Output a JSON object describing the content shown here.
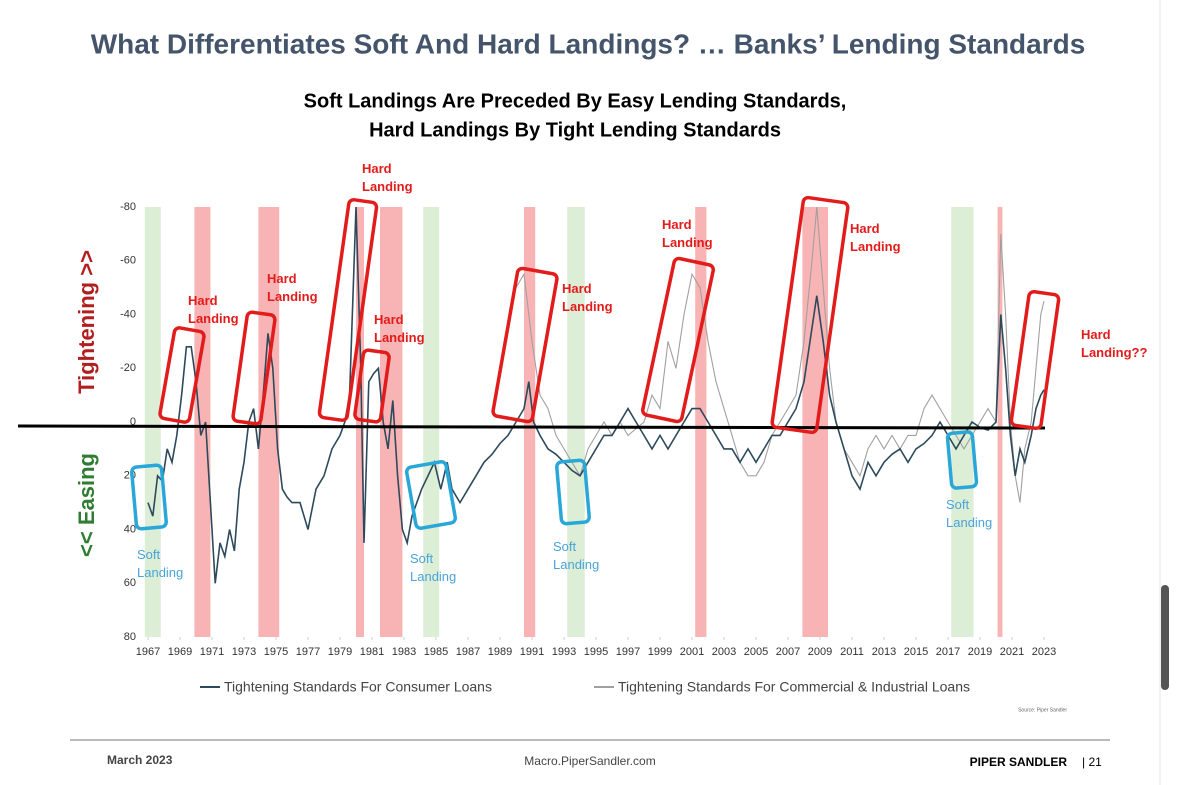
{
  "slide": {
    "title": "What Differentiates Soft And Hard Landings? … Banks’ Lending Standards",
    "footer_date": "March 2023",
    "footer_site": "Macro.PiperSandler.com",
    "footer_brand": "PIPER SANDLER",
    "footer_page": "| 21"
  },
  "chart_data": {
    "type": "line",
    "title_lines": [
      "Soft Landings Are Preceded By Easy Lending Standards,",
      "Hard Landings By Tight Lending Standards"
    ],
    "y_label_up": "Tightening >>",
    "y_label_down": "<< Easing",
    "source": "Source: Piper Sandler",
    "invert_y": true,
    "xlim": [
      1966.5,
      2024
    ],
    "xticks": [
      1967,
      1969,
      1971,
      1973,
      1975,
      1977,
      1979,
      1981,
      1983,
      1985,
      1987,
      1989,
      1991,
      1993,
      1995,
      1997,
      1999,
      2001,
      2003,
      2005,
      2007,
      2009,
      2011,
      2013,
      2015,
      2017,
      2019,
      2021,
      2023
    ],
    "ylim": [
      -80,
      80
    ],
    "yticks": [
      -80,
      -60,
      -40,
      -20,
      0,
      20,
      40,
      60,
      80
    ],
    "recessions": [
      [
        1969.9,
        1970.9
      ],
      [
        1973.9,
        1975.2
      ],
      [
        1980,
        1980.5
      ],
      [
        1981.5,
        1982.9
      ],
      [
        1990.5,
        1991.2
      ],
      [
        2001.2,
        2001.9
      ],
      [
        2007.9,
        2009.5
      ],
      [
        2020.1,
        2020.4
      ]
    ],
    "recession_color": "#f8b4b4",
    "soft_periods": [
      [
        1966.8,
        1967.8
      ],
      [
        1984.2,
        1985.2
      ],
      [
        1993.2,
        1994.3
      ],
      [
        2017.2,
        2018.6
      ]
    ],
    "soft_color": "#dcefd6",
    "annotations": [
      "Hard Landing",
      "Hard Landing",
      "Hard Landing",
      "Hard Landing",
      "Hard Landing",
      "Hard Landing",
      "Hard Landing",
      "Hard Landing??",
      "Soft Landing",
      "Soft Landing",
      "Soft Landing",
      "Soft Landing"
    ],
    "series": [
      {
        "name": "Tightening Standards For Consumer Loans",
        "color": "#2d4a5c",
        "x": [
          1967,
          1967.3,
          1967.6,
          1967.9,
          1968.2,
          1968.5,
          1968.8,
          1969.1,
          1969.4,
          1969.7,
          1970,
          1970.3,
          1970.6,
          1970.9,
          1971.2,
          1971.5,
          1971.8,
          1972.1,
          1972.4,
          1972.7,
          1973,
          1973.3,
          1973.6,
          1973.9,
          1974.2,
          1974.5,
          1974.8,
          1975.1,
          1975.4,
          1975.7,
          1976,
          1976.5,
          1977,
          1977.5,
          1978,
          1978.5,
          1979,
          1979.3,
          1979.6,
          1980,
          1980.3,
          1980.5,
          1980.8,
          1981.1,
          1981.4,
          1981.7,
          1982,
          1982.3,
          1982.6,
          1982.9,
          1983.2,
          1983.5,
          1983.8,
          1984.1,
          1984.5,
          1984.9,
          1985.3,
          1985.7,
          1986,
          1986.5,
          1987,
          1987.5,
          1988,
          1988.5,
          1989,
          1989.5,
          1990,
          1990.5,
          1990.8,
          1991.1,
          1991.5,
          1992,
          1992.5,
          1993,
          1993.5,
          1994,
          1994.5,
          1995,
          1995.5,
          1996,
          1996.5,
          1997,
          1997.5,
          1998,
          1998.5,
          1999,
          1999.5,
          2000,
          2000.5,
          2001,
          2001.5,
          2002,
          2002.5,
          2003,
          2003.5,
          2004,
          2004.5,
          2005,
          2005.5,
          2006,
          2006.5,
          2007,
          2007.5,
          2008,
          2008.5,
          2008.8,
          2009.2,
          2009.6,
          2010,
          2010.5,
          2011,
          2011.5,
          2012,
          2012.5,
          2013,
          2013.5,
          2014,
          2014.5,
          2015,
          2015.5,
          2016,
          2016.5,
          2017,
          2017.5,
          2018,
          2018.5,
          2019,
          2019.5,
          2020,
          2020.3,
          2020.6,
          2020.9,
          2021.2,
          2021.5,
          2021.8,
          2022.2,
          2022.5,
          2022.8,
          2023
        ],
        "values": [
          30,
          35,
          20,
          22,
          10,
          15,
          5,
          -10,
          -28,
          -28,
          -15,
          5,
          0,
          30,
          60,
          45,
          50,
          40,
          48,
          25,
          15,
          0,
          -5,
          10,
          -10,
          -33,
          -20,
          10,
          25,
          28,
          30,
          30,
          40,
          25,
          20,
          10,
          5,
          0,
          -10,
          -80,
          -20,
          45,
          -15,
          -18,
          -20,
          0,
          10,
          -8,
          20,
          40,
          45,
          35,
          30,
          25,
          20,
          15,
          25,
          15,
          25,
          30,
          25,
          20,
          15,
          12,
          8,
          5,
          0,
          -5,
          -15,
          0,
          5,
          10,
          12,
          15,
          18,
          20,
          15,
          10,
          5,
          5,
          0,
          -5,
          0,
          5,
          10,
          5,
          10,
          5,
          0,
          -5,
          -5,
          0,
          5,
          10,
          10,
          15,
          10,
          15,
          10,
          5,
          5,
          0,
          -5,
          -15,
          -35,
          -47,
          -30,
          -10,
          0,
          10,
          20,
          25,
          15,
          20,
          15,
          12,
          10,
          15,
          10,
          8,
          5,
          0,
          5,
          10,
          5,
          0,
          2,
          3,
          0,
          -40,
          -20,
          5,
          20,
          10,
          15,
          5,
          -5,
          -10,
          -12
        ]
      },
      {
        "name": "Tightening Standards For Commercial & Industrial Loans",
        "color": "#a0a0a0",
        "x": [
          1990,
          1990.5,
          1991,
          1991.5,
          1992,
          1992.5,
          1993,
          1993.5,
          1994,
          1994.5,
          1995,
          1995.5,
          1996,
          1996.5,
          1997,
          1998,
          1998.5,
          1999,
          1999.5,
          2000,
          2000.5,
          2001,
          2001.5,
          2002,
          2002.5,
          2003,
          2003.5,
          2004,
          2004.5,
          2005,
          2005.5,
          2006,
          2006.5,
          2007,
          2007.5,
          2008,
          2008.5,
          2008.8,
          2009.2,
          2009.6,
          2010,
          2010.5,
          2011,
          2011.5,
          2012,
          2012.5,
          2013,
          2013.5,
          2014,
          2014.5,
          2015,
          2015.5,
          2016,
          2016.5,
          2017,
          2017.5,
          2018,
          2018.5,
          2019,
          2019.5,
          2020,
          2020.3,
          2020.6,
          2020.9,
          2021.2,
          2021.5,
          2021.8,
          2022.2,
          2022.5,
          2022.8,
          2023
        ],
        "values": [
          -50,
          -55,
          -30,
          -10,
          -5,
          5,
          10,
          15,
          20,
          10,
          5,
          0,
          5,
          0,
          5,
          0,
          -10,
          -5,
          -30,
          -20,
          -40,
          -55,
          -50,
          -30,
          -15,
          -5,
          5,
          15,
          20,
          20,
          15,
          5,
          0,
          -5,
          -10,
          -30,
          -60,
          -80,
          -50,
          -20,
          0,
          10,
          15,
          20,
          10,
          5,
          10,
          5,
          10,
          5,
          5,
          -5,
          -10,
          -5,
          0,
          5,
          10,
          5,
          0,
          -5,
          0,
          -70,
          -40,
          0,
          20,
          30,
          10,
          0,
          -20,
          -40,
          -45
        ]
      }
    ]
  }
}
